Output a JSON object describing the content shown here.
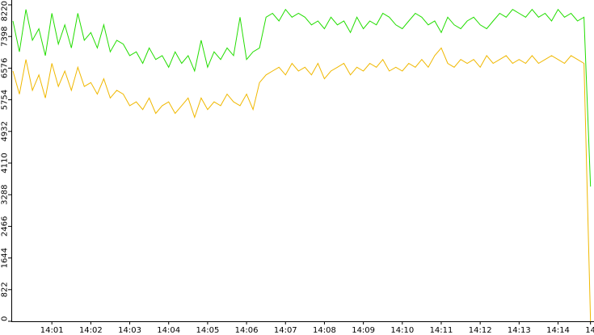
{
  "chart_data": {
    "type": "line",
    "categories": [
      null,
      null,
      null,
      null,
      null,
      null,
      "14:01",
      null,
      null,
      null,
      null,
      null,
      "14:02",
      null,
      null,
      null,
      null,
      null,
      "14:03",
      null,
      null,
      null,
      null,
      null,
      "14:04",
      null,
      null,
      null,
      null,
      null,
      "14:05",
      null,
      null,
      null,
      null,
      null,
      "14:06",
      null,
      null,
      null,
      null,
      null,
      "14:07",
      null,
      null,
      null,
      null,
      null,
      "14:08",
      null,
      null,
      null,
      null,
      null,
      "14:09",
      null,
      null,
      null,
      null,
      null,
      "14:10",
      null,
      null,
      null,
      null,
      null,
      "14:11",
      null,
      null,
      null,
      null,
      null,
      "14:12",
      null,
      null,
      null,
      null,
      null,
      "14:13",
      null,
      null,
      null,
      null,
      null,
      "14:14",
      null,
      null,
      null,
      null,
      "14"
    ],
    "series": [
      {
        "color": "#22dd00",
        "values": [
          7800,
          7000,
          8100,
          7300,
          7600,
          6900,
          8000,
          7200,
          7700,
          7100,
          8000,
          7300,
          7500,
          7100,
          7700,
          7000,
          7300,
          7200,
          6900,
          7000,
          6700,
          7100,
          6800,
          6900,
          6600,
          7000,
          6700,
          6900,
          6500,
          7300,
          6600,
          7000,
          6800,
          7100,
          6900,
          7900,
          6800,
          7000,
          7100,
          7900,
          8000,
          7800,
          8100,
          7900,
          8000,
          7900,
          7700,
          7800,
          7600,
          7900,
          7700,
          7800,
          7500,
          7900,
          7600,
          7800,
          7700,
          8000,
          7900,
          7700,
          7600,
          7800,
          8000,
          7900,
          7700,
          7800,
          7500,
          7900,
          7700,
          7600,
          7800,
          7900,
          7700,
          7600,
          7800,
          8000,
          7900,
          8100,
          8000,
          7900,
          8100,
          7900,
          8000,
          7800,
          8100,
          7900,
          8000,
          7800,
          7900,
          3500
        ]
      },
      {
        "color": "#f0b800",
        "values": [
          6500,
          5900,
          6800,
          6000,
          6400,
          5800,
          6700,
          6100,
          6500,
          6000,
          6600,
          6100,
          6200,
          5900,
          6300,
          5800,
          6000,
          5900,
          5600,
          5700,
          5500,
          5800,
          5400,
          5600,
          5700,
          5400,
          5600,
          5800,
          5300,
          5800,
          5500,
          5700,
          5600,
          5900,
          5700,
          5600,
          5900,
          5500,
          6200,
          6400,
          6500,
          6600,
          6400,
          6700,
          6500,
          6600,
          6400,
          6700,
          6300,
          6500,
          6600,
          6700,
          6400,
          6600,
          6500,
          6700,
          6600,
          6800,
          6500,
          6600,
          6500,
          6700,
          6600,
          6800,
          6600,
          6900,
          7100,
          6700,
          6600,
          6800,
          6700,
          6800,
          6600,
          6900,
          6700,
          6800,
          6900,
          6700,
          6800,
          6700,
          6900,
          6700,
          6800,
          6900,
          6800,
          6700,
          6900,
          6800,
          6700,
          0
        ]
      }
    ],
    "ylim": [
      0,
      8220
    ],
    "yticks": [
      0,
      822,
      1644,
      2466,
      3288,
      4110,
      4932,
      5754,
      6576,
      7398,
      8220
    ]
  }
}
